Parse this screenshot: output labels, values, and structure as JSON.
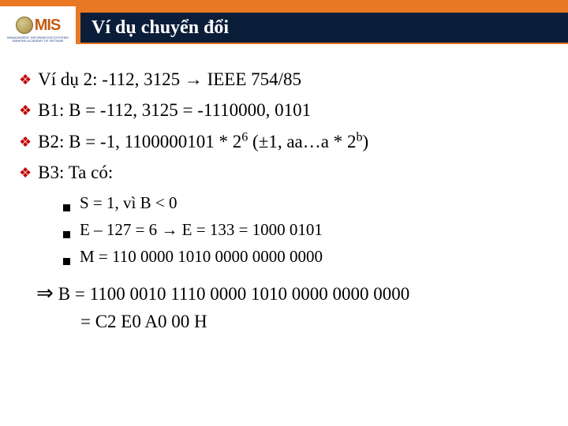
{
  "colors": {
    "accent_orange": "#e97824",
    "header_dark": "#0a1e3a",
    "diamond": "#c00000",
    "text": "#000000",
    "white": "#ffffff"
  },
  "logo": {
    "text": "MIS",
    "sub1": "MANAGEMENT INFORMATION SYSTEMS",
    "sub2": "BANKING ACADEMY OF VIETNAM"
  },
  "title": "Ví dụ chuyển đổi",
  "lines": {
    "l1_a": "Ví dụ 2: -112, 3125 ",
    "l1_b": " IEEE 754/85",
    "l2": "B1: B = -112, 3125 = -1110000, 0101",
    "l3_a": "B2: B = -1, 1100000101 * 2",
    "l3_sup": "6",
    "l3_b": " (±1, aa…a * 2",
    "l3_sup2": "b",
    "l3_c": ")",
    "l4": "B3: Ta có:"
  },
  "subs": {
    "s1": "S = 1, vì B < 0",
    "s2_a": "E – 127 = 6 ",
    "s2_b": " E = 133 = 1000 0101",
    "s3": "M = 110 0000 1010 0000 0000 0000"
  },
  "result": {
    "r1": "B = 1100 0010 1110 0000 1010 0000 0000 0000",
    "r2": "= C2 E0 A0 00 H"
  }
}
